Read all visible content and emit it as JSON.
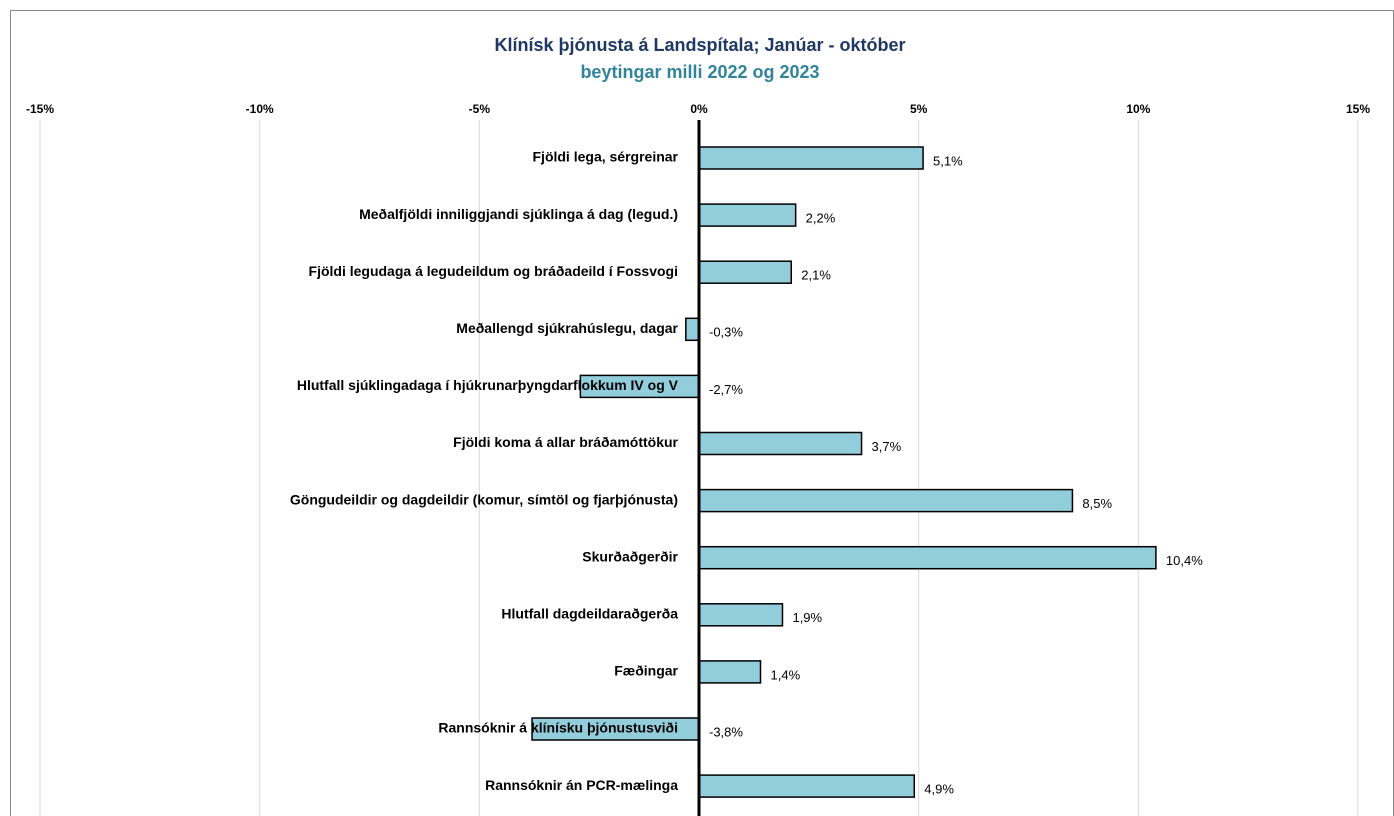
{
  "chart_data": {
    "type": "bar",
    "orientation": "horizontal",
    "title": "Klínísk þjónusta á Landspítala; Janúar - október",
    "subtitle": "beytingar milli 2022 og 2023",
    "categories": [
      "Fjöldi lega, sérgreinar",
      "Meðalfjöldi inniliggjandi sjúklinga á dag (legud.)",
      "Fjöldi legudaga á legudeildum og bráðadeild í Fossvogi",
      "Meðallengd sjúkrahúslegu, dagar",
      "Hlutfall sjúklingadaga í hjúkrunarþyngdarflokkum IV og V",
      "Fjöldi koma á allar bráðamóttökur",
      "Göngudeildir og dagdeildir (komur, símtöl og fjarþjónusta)",
      "Skurðaðgerðir",
      "Hlutfall dagdeildaraðgerða",
      "Fæðingar",
      "Rannsóknir á klínísku þjónustusviði",
      "Rannsóknir án PCR-mælinga"
    ],
    "values": [
      5.1,
      2.2,
      2.1,
      -0.3,
      -2.7,
      3.7,
      8.5,
      10.4,
      1.9,
      1.4,
      -3.8,
      4.9
    ],
    "value_labels": [
      "5,1%",
      "2,2%",
      "2,1%",
      "-0,3%",
      "-2,7%",
      "3,7%",
      "8,5%",
      "10,4%",
      "1,9%",
      "1,4%",
      "-3,8%",
      "4,9%"
    ],
    "color": "#92cddc",
    "xlim": [
      -15,
      15
    ],
    "xticks": [
      {
        "value": -15,
        "label": "-15%"
      },
      {
        "value": -10,
        "label": "-10%"
      },
      {
        "value": -5,
        "label": "-5%"
      },
      {
        "value": 0,
        "label": "0%"
      },
      {
        "value": 5,
        "label": "5%"
      },
      {
        "value": 10,
        "label": "10%"
      },
      {
        "value": 15,
        "label": "15%"
      }
    ],
    "grid": true
  }
}
